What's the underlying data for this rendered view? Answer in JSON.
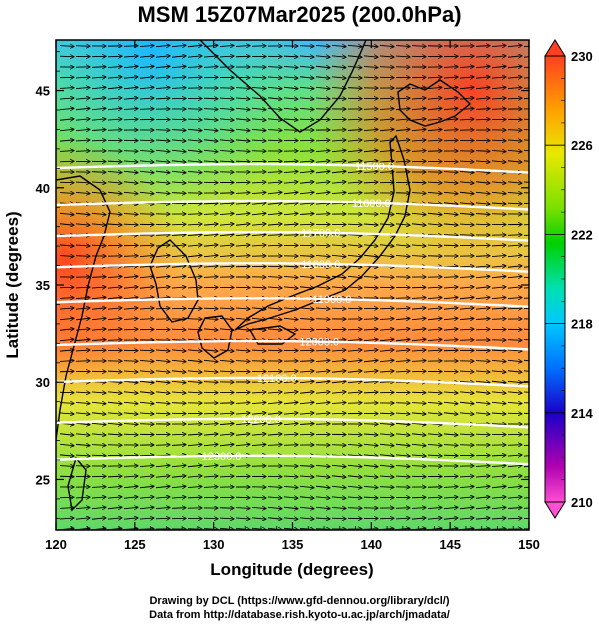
{
  "title": "MSM 15Z07Mar2025 (200.0hPa)",
  "credits": [
    "Drawing by DCL (https://www.gfd-dennou.org/library/dcl/)",
    "Data from http://database.rish.kyoto-u.ac.jp/arch/jmadata/"
  ],
  "chart_data": {
    "type": "heatmap",
    "title": "MSM 15Z07Mar2025 (200.0hPa)",
    "xlabel": "Longitude (degrees)",
    "ylabel": "Latitude  (degrees)",
    "xlim": [
      120,
      150
    ],
    "ylim": [
      22.4,
      47.6
    ],
    "xticks": [
      120,
      125,
      130,
      135,
      140,
      145,
      150
    ],
    "yticks": [
      25,
      30,
      35,
      40,
      45
    ],
    "colorbar": {
      "range": [
        210,
        230
      ],
      "ticks": [
        210,
        214,
        218,
        222,
        226,
        230
      ],
      "position": "right"
    },
    "contours": [
      {
        "label": "11500.0",
        "lat": 40.9,
        "label_lon": 140.2
      },
      {
        "label": "11600.0",
        "lat": 39.0,
        "label_lon": 140.0
      },
      {
        "label": "11700.0",
        "lat": 37.4,
        "label_lon": 136.8
      },
      {
        "label": "11800.0",
        "lat": 35.8,
        "label_lon": 136.8
      },
      {
        "label": "11900.0",
        "lat": 34.0,
        "label_lon": 137.5
      },
      {
        "label": "12000.0",
        "lat": 31.8,
        "label_lon": 136.7
      },
      {
        "label": "12100.0",
        "lat": 29.9,
        "label_lon": 134.0
      },
      {
        "label": "12200.0",
        "lat": 27.8,
        "label_lon": 133.0
      },
      {
        "label": "12300.0",
        "lat": 25.9,
        "label_lon": 130.5
      }
    ],
    "wind": "vectors predominantly westerly (eastward arrows) across the domain",
    "colormap": [
      "#ff4fd2",
      "#b000b0",
      "#1a00c8",
      "#0070ff",
      "#00c8ff",
      "#00e0b0",
      "#00d000",
      "#7be000",
      "#e8e800",
      "#ffa000",
      "#ff4020"
    ]
  }
}
